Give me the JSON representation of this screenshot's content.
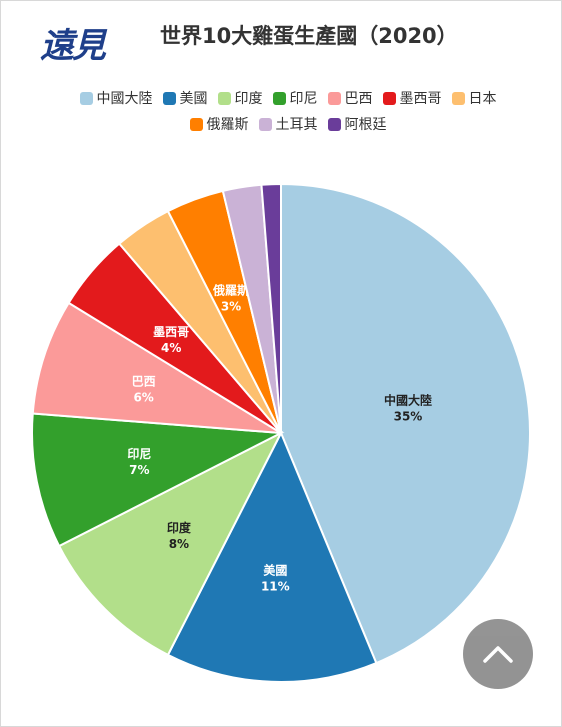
{
  "logo_text": "遠見",
  "title": "世界10大雞蛋生產國（2020）",
  "scroll_top_icon": "chevron-up-icon",
  "chart_data": {
    "type": "pie",
    "title": "世界10大雞蛋生產國（2020）",
    "legend_position": "top",
    "start_angle_deg": 0,
    "direction": "clockwise",
    "slices": [
      {
        "label": "中國大陸",
        "value": 35,
        "value_label": "35%",
        "color": "#a6cde3",
        "label_color": "#222222"
      },
      {
        "label": "美國",
        "value": 11,
        "value_label": "11%",
        "color": "#1f78b4",
        "label_color": "#ffffff"
      },
      {
        "label": "印度",
        "value": 8,
        "value_label": "8%",
        "color": "#b2df8a",
        "label_color": "#222222"
      },
      {
        "label": "印尼",
        "value": 7,
        "value_label": "7%",
        "color": "#33a02c",
        "label_color": "#ffffff"
      },
      {
        "label": "巴西",
        "value": 6,
        "value_label": "6%",
        "color": "#fb9a99",
        "label_color": "#ffffff"
      },
      {
        "label": "墨西哥",
        "value": 4,
        "value_label": "4%",
        "color": "#e31a1c",
        "label_color": "#ffffff"
      },
      {
        "label": "日本",
        "value": 3,
        "value_label": "",
        "color": "#fdbf6f",
        "label_color": "#ffffff"
      },
      {
        "label": "俄羅斯",
        "value": 3,
        "value_label": "3%",
        "color": "#ff7f00",
        "label_color": "#ffffff"
      },
      {
        "label": "土耳其",
        "value": 2,
        "value_label": "",
        "color": "#cab2d6",
        "label_color": "#ffffff"
      },
      {
        "label": "阿根廷",
        "value": 1,
        "value_label": "",
        "color": "#6a3d9a",
        "label_color": "#ffffff"
      }
    ]
  }
}
